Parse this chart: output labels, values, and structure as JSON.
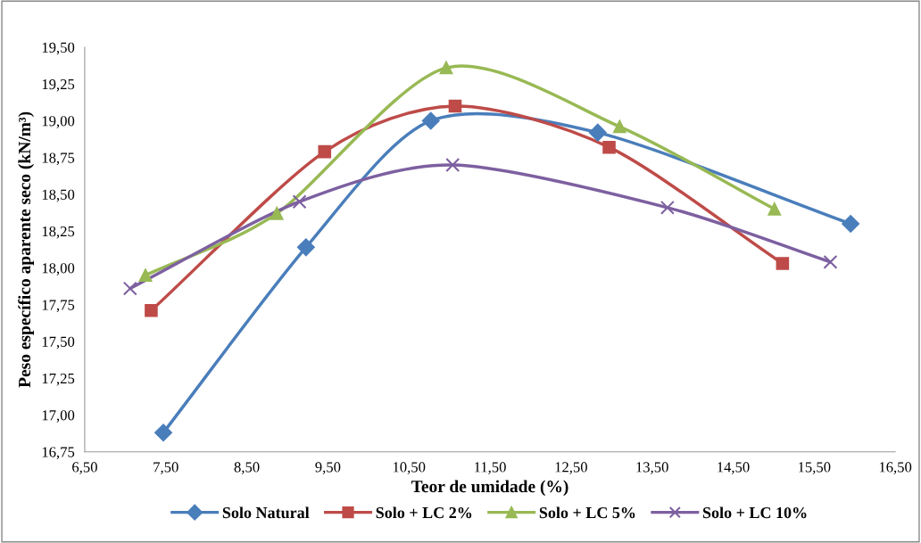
{
  "chart_data": {
    "type": "line",
    "xlabel": "Teor de umidade (%)",
    "ylabel": "Peso específico aparente seco (kN/m³)",
    "xlim": [
      6.5,
      16.5
    ],
    "xticks": [
      {
        "value": 6.5,
        "label": "6,50"
      },
      {
        "value": 7.5,
        "label": "7,50"
      },
      {
        "value": 8.5,
        "label": "8,50"
      },
      {
        "value": 9.5,
        "label": "9,50"
      },
      {
        "value": 10.5,
        "label": "10,50"
      },
      {
        "value": 11.5,
        "label": "11,50"
      },
      {
        "value": 12.5,
        "label": "12,50"
      },
      {
        "value": 13.5,
        "label": "13,50"
      },
      {
        "value": 14.5,
        "label": "14,50"
      },
      {
        "value": 15.5,
        "label": "15,50"
      },
      {
        "value": 16.5,
        "label": "16,50"
      }
    ],
    "ylim": [
      16.75,
      19.5
    ],
    "yticks": [
      {
        "value": 16.75,
        "label": "16,75"
      },
      {
        "value": 17.0,
        "label": "17,00"
      },
      {
        "value": 17.25,
        "label": "17,25"
      },
      {
        "value": 17.5,
        "label": "17,50"
      },
      {
        "value": 17.75,
        "label": "17,75"
      },
      {
        "value": 18.0,
        "label": "18,00"
      },
      {
        "value": 18.25,
        "label": "18,25"
      },
      {
        "value": 18.5,
        "label": "18,50"
      },
      {
        "value": 18.75,
        "label": "18,75"
      },
      {
        "value": 19.0,
        "label": "19,00"
      },
      {
        "value": 19.25,
        "label": "19,25"
      },
      {
        "value": 19.5,
        "label": "19,50"
      }
    ],
    "grid": false,
    "legend": "bottom",
    "line_style": "solid",
    "series": [
      {
        "name": "Solo Natural",
        "color": "#4a7ebb",
        "marker": "diamond",
        "x": [
          7.47,
          9.23,
          10.77,
          12.83,
          15.95
        ],
        "values": [
          16.88,
          18.14,
          19.0,
          18.92,
          18.3
        ]
      },
      {
        "name": "Solo + LC 2%",
        "color": "#be4b48",
        "marker": "square",
        "x": [
          7.32,
          9.46,
          11.07,
          12.97,
          15.11
        ],
        "values": [
          17.71,
          18.79,
          19.1,
          18.82,
          18.03
        ]
      },
      {
        "name": "Solo + LC 5%",
        "color": "#98b954",
        "marker": "triangle",
        "x": [
          7.25,
          8.87,
          10.96,
          13.1,
          15.01
        ],
        "values": [
          17.95,
          18.37,
          19.36,
          18.96,
          18.4
        ]
      },
      {
        "name": "Solo + LC 10%",
        "color": "#7d60a0",
        "marker": "cross",
        "x": [
          7.06,
          9.15,
          11.04,
          13.69,
          15.7
        ],
        "values": [
          17.86,
          18.45,
          18.7,
          18.41,
          18.04
        ]
      }
    ]
  }
}
